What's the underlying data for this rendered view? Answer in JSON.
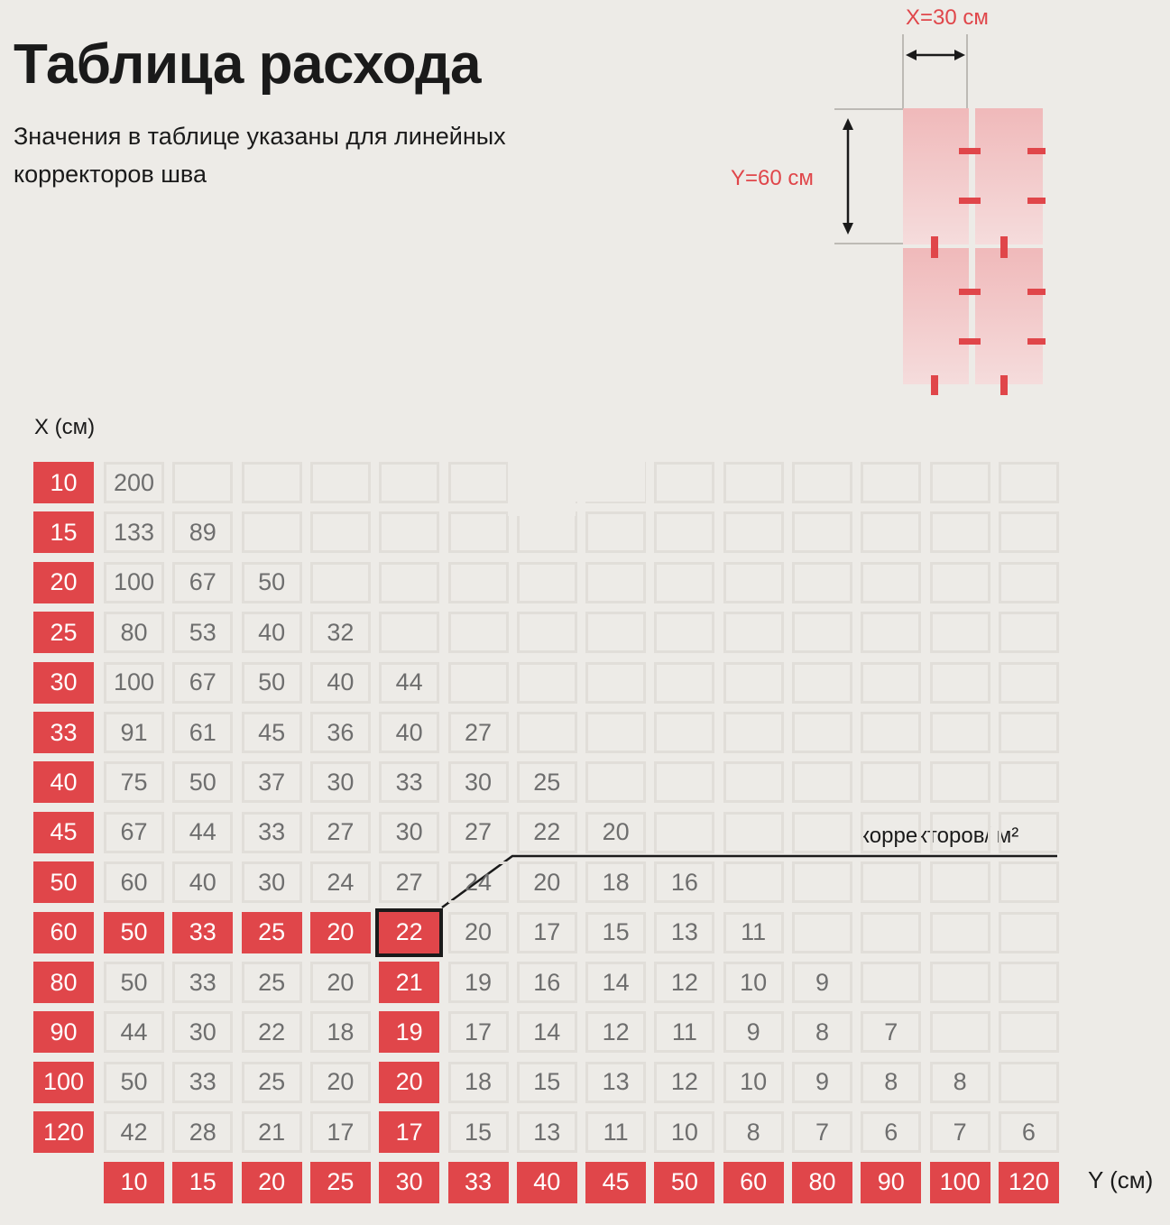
{
  "header": {
    "title": "Таблица расхода",
    "subtitle": "Значения в таблице указаны для линейных корректоров шва"
  },
  "diagram": {
    "x_label": "X=30 см",
    "y_label": "Y=60 см",
    "accent_color": "#e0464a"
  },
  "chart_data": {
    "type": "table",
    "title": "Таблица расхода",
    "x_axis_title": "X (см)",
    "y_axis_title": "Y (см)",
    "unit_label": "корректоров/ м²",
    "rows_x": [
      10,
      15,
      20,
      25,
      30,
      33,
      40,
      45,
      50,
      60,
      80,
      90,
      100,
      120
    ],
    "cols_y": [
      10,
      15,
      20,
      25,
      30,
      33,
      40,
      45,
      50,
      60,
      80,
      90,
      100,
      120
    ],
    "values": [
      [
        200
      ],
      [
        133,
        89
      ],
      [
        100,
        67,
        50
      ],
      [
        80,
        53,
        40,
        32
      ],
      [
        100,
        67,
        50,
        40,
        44
      ],
      [
        91,
        61,
        45,
        36,
        40,
        27
      ],
      [
        75,
        50,
        37,
        30,
        33,
        30,
        25
      ],
      [
        67,
        44,
        33,
        27,
        30,
        27,
        22,
        20
      ],
      [
        60,
        40,
        30,
        24,
        27,
        24,
        20,
        18,
        16
      ],
      [
        50,
        33,
        25,
        20,
        22,
        20,
        17,
        15,
        13,
        11
      ],
      [
        50,
        33,
        25,
        20,
        21,
        19,
        16,
        14,
        12,
        10,
        9
      ],
      [
        44,
        30,
        22,
        18,
        19,
        17,
        14,
        12,
        11,
        9,
        8,
        7
      ],
      [
        50,
        33,
        25,
        20,
        20,
        18,
        15,
        13,
        12,
        10,
        9,
        8,
        8
      ],
      [
        42,
        28,
        21,
        17,
        17,
        15,
        13,
        11,
        10,
        8,
        7,
        6,
        7,
        6
      ]
    ],
    "highlight": {
      "x": 60,
      "y": 30,
      "value": 22
    },
    "highlight_color": "#e0464a"
  }
}
